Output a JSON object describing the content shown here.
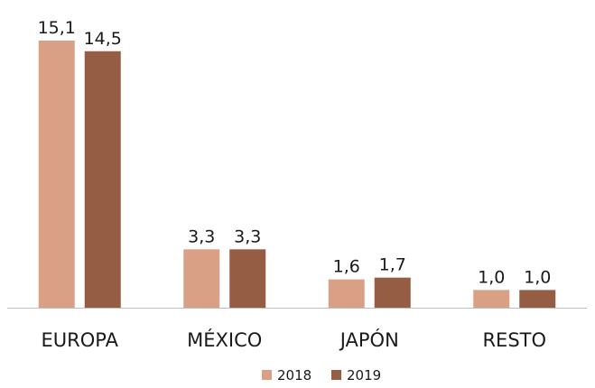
{
  "chart_data": {
    "type": "bar",
    "categories": [
      "EUROPA",
      "MÉXICO",
      "JAPÓN",
      "RESTO"
    ],
    "series": [
      {
        "name": "2018",
        "color": "#D9A086",
        "values": [
          15.1,
          3.3,
          1.6,
          1.0
        ],
        "labels": [
          "15,1",
          "3,3",
          "1,6",
          "1,0"
        ]
      },
      {
        "name": "2019",
        "color": "#955E44",
        "values": [
          14.5,
          3.3,
          1.7,
          1.0
        ],
        "labels": [
          "14,5",
          "3,3",
          "1,7",
          "1,0"
        ]
      }
    ],
    "title": "",
    "xlabel": "",
    "ylabel": "",
    "ylim": [
      0,
      15.1
    ],
    "grid": false,
    "legend_position": "bottom-center",
    "axis_color": "#BFBFBF"
  }
}
